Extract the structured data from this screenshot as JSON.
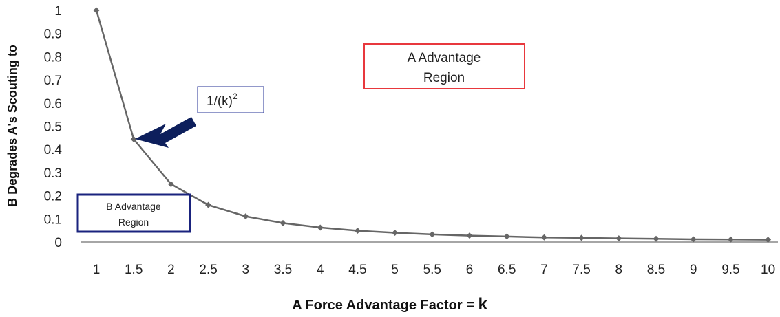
{
  "chart_data": {
    "type": "line",
    "xlabel_prefix": "A Force Advantage Factor = ",
    "xlabel_var": "k",
    "ylabel": "B Degrades A's Scouting to",
    "x_ticks": [
      "1",
      "1.5",
      "2",
      "2.5",
      "3",
      "3.5",
      "4",
      "4.5",
      "5",
      "5.5",
      "6",
      "6.5",
      "7",
      "7.5",
      "8",
      "8.5",
      "9",
      "9.5",
      "10"
    ],
    "y_ticks": [
      "0",
      "0.1",
      "0.2",
      "0.3",
      "0.4",
      "0.5",
      "0.6",
      "0.7",
      "0.8",
      "0.9",
      "1"
    ],
    "ylim": [
      0,
      1
    ],
    "series": [
      {
        "x": [
          1,
          1.5,
          2,
          2.5,
          3,
          3.5,
          4,
          4.5,
          5,
          5.5,
          6,
          6.5,
          7,
          7.5,
          8,
          8.5,
          9,
          9.5,
          10
        ],
        "values": [
          1,
          0.444,
          0.25,
          0.16,
          0.111,
          0.082,
          0.0625,
          0.049,
          0.04,
          0.033,
          0.028,
          0.024,
          0.02,
          0.018,
          0.016,
          0.014,
          0.012,
          0.011,
          0.01
        ],
        "color": "#666666"
      }
    ],
    "annotations": {
      "a_region": [
        "A Advantage",
        "Region"
      ],
      "b_region": [
        "B Advantage",
        "Region"
      ],
      "formula_base": "1/(k)",
      "formula_exp": "2"
    },
    "colors": {
      "a_box": "#e8383d",
      "b_box": "#1a237e",
      "formula_box": "#4a55a8",
      "arrow": "#0d1f5c",
      "line": "#666666",
      "axis": "#888888"
    }
  }
}
